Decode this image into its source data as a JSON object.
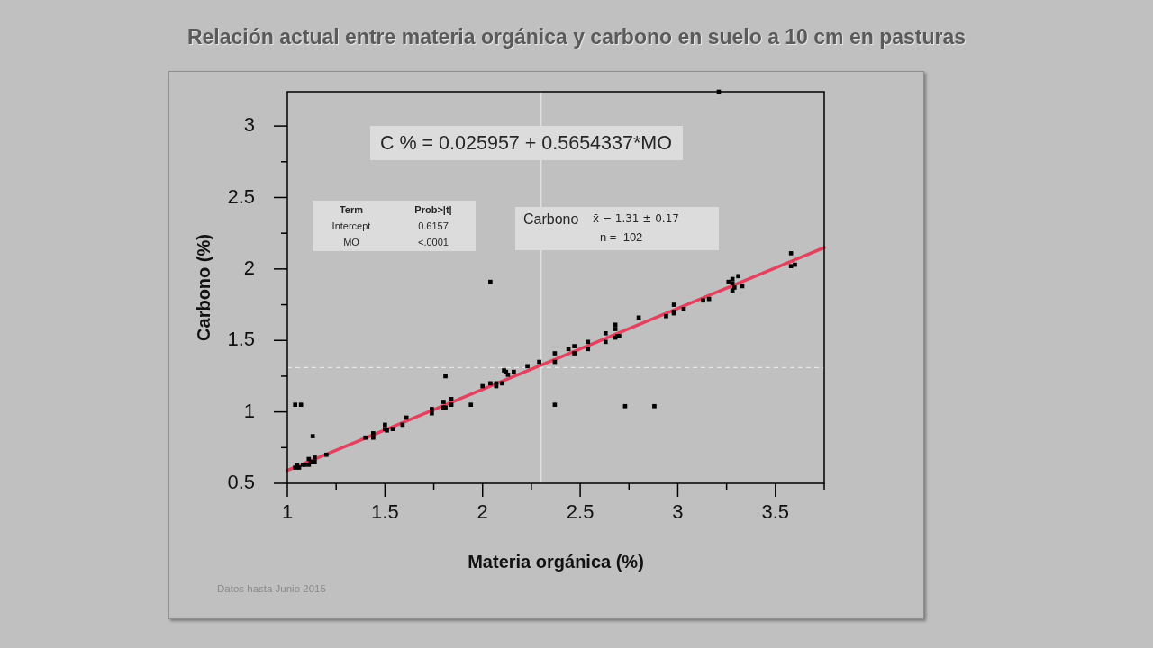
{
  "chart_data": {
    "type": "scatter",
    "title": "Relación actual entre materia orgánica y carbono en suelo a 10 cm en pasturas",
    "xlabel": "Materia orgánica (%)",
    "ylabel": "Carbono (%)",
    "xlim": [
      1,
      3.75
    ],
    "ylim": [
      0.5,
      3.24
    ],
    "xticks": [
      1,
      {
        "value": 1.25,
        "label": null
      },
      1.5,
      {
        "value": 1.75,
        "label": null
      },
      2,
      {
        "value": 2.25,
        "label": null
      },
      2.5,
      {
        "value": 2.75,
        "label": null
      },
      3,
      {
        "value": 3.25,
        "label": null
      },
      3.5,
      {
        "value": 3.75,
        "label": null
      }
    ],
    "yticks": [
      0.5,
      {
        "value": 0.75,
        "label": null
      },
      1,
      {
        "value": 1.25,
        "label": null
      },
      1.5,
      {
        "value": 1.75,
        "label": null
      },
      2,
      {
        "value": 2.25,
        "label": null
      },
      2.5,
      {
        "value": 2.75,
        "label": null
      },
      3
    ],
    "series": [
      {
        "type": "scatter",
        "color": "#000000",
        "marker": "square",
        "x": [
          1.04,
          1.07,
          1.13,
          1.04,
          1.05,
          1.06,
          1.08,
          1.09,
          1.11,
          1.11,
          1.12,
          1.14,
          1.14,
          1.2,
          1.4,
          1.44,
          1.44,
          1.5,
          1.5,
          1.51,
          1.54,
          1.59,
          1.61,
          1.74,
          1.74,
          1.81,
          1.8,
          1.8,
          1.81,
          1.84,
          1.84,
          1.94,
          2.04,
          2.0,
          2.04,
          2.07,
          2.07,
          2.1,
          2.11,
          2.12,
          2.13,
          2.16,
          2.23,
          2.29,
          2.37,
          2.37,
          2.37,
          2.44,
          2.47,
          2.47,
          2.54,
          2.54,
          2.63,
          2.63,
          2.68,
          2.68,
          2.68,
          2.69,
          2.7,
          2.73,
          2.8,
          2.88,
          2.94,
          2.98,
          2.98,
          2.98,
          3.03,
          3.13,
          3.16,
          3.26,
          3.28,
          3.28,
          3.28,
          3.29,
          3.31,
          3.33,
          3.58,
          3.58,
          3.6,
          3.21
        ],
        "values": [
          1.05,
          1.05,
          0.83,
          0.61,
          0.63,
          0.61,
          0.63,
          0.63,
          0.67,
          0.63,
          0.65,
          0.68,
          0.65,
          0.7,
          0.82,
          0.85,
          0.82,
          0.91,
          0.88,
          0.87,
          0.88,
          0.91,
          0.96,
          1.02,
          0.99,
          1.25,
          1.07,
          1.03,
          1.03,
          1.09,
          1.05,
          1.05,
          1.91,
          1.18,
          1.2,
          1.2,
          1.18,
          1.2,
          1.29,
          1.28,
          1.26,
          1.28,
          1.32,
          1.35,
          1.41,
          1.35,
          1.05,
          1.44,
          1.46,
          1.41,
          1.49,
          1.44,
          1.55,
          1.49,
          1.61,
          1.58,
          1.52,
          1.53,
          1.53,
          1.04,
          1.66,
          1.04,
          1.67,
          1.75,
          1.7,
          1.69,
          1.72,
          1.78,
          1.79,
          1.91,
          1.93,
          1.9,
          1.85,
          1.87,
          1.95,
          1.88,
          2.11,
          2.02,
          2.03,
          3.24
        ]
      },
      {
        "type": "line",
        "color": "#e5405e",
        "marker": "none",
        "x": [
          1,
          3.75
        ],
        "values": [
          0.59,
          2.15
        ]
      }
    ],
    "ref_lines": [
      {
        "axis": "y",
        "value": 1.31,
        "color": "#e6e6e6",
        "line_style": "dashed"
      },
      {
        "axis": "x",
        "value": 2.3,
        "color": "#e6e6e6",
        "line_style": "solid"
      }
    ],
    "annotations": [
      "C % = 0.025957 + 0.5654337*MO",
      "Term",
      "Prob>|t|",
      "Intercept",
      "0.6157",
      "MO",
      "<.0001",
      "Carbono",
      "x̄ = 1.31 ± 0.17",
      "n =  102",
      "Datos hasta Junio 2015"
    ]
  }
}
